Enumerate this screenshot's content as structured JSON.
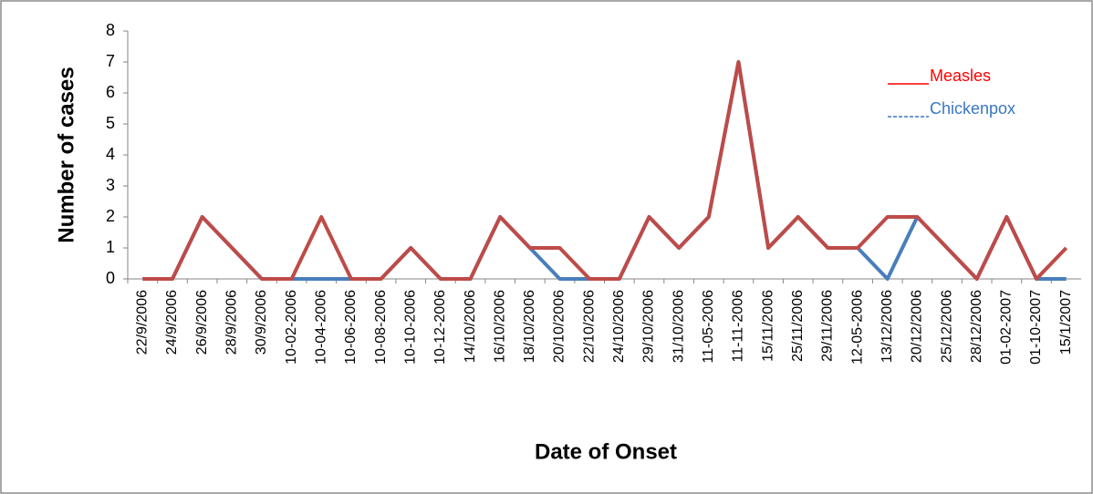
{
  "chart_data": {
    "type": "line",
    "y_label": "Number of cases",
    "x_label": "Date of Onset",
    "categories": [
      "22/9/2006",
      "24/9/2006",
      "26/9/2006",
      "28/9/2006",
      "30/9/2006",
      "10-02-2006",
      "10-04-2006",
      "10-06-2006",
      "10-08-2006",
      "10-10-2006",
      "10-12-2006",
      "14/10/2006",
      "16/10/2006",
      "18/10/2006",
      "20/10/2006",
      "22/10/2006",
      "24/10/2006",
      "29/10/2006",
      "31/10/2006",
      "11-05-2006",
      "11-11-2006",
      "15/11/2006",
      "25/11/2006",
      "29/11/2006",
      "12-05-2006",
      "13/12/2006",
      "20/12/2006",
      "25/12/2006",
      "28/12/2006",
      "01-02-2007",
      "01-10-2007",
      "15/1/2007"
    ],
    "series": [
      {
        "name": "Chickenpox",
        "color": "#4a7ebb",
        "values": [
          0,
          0,
          2,
          1,
          0,
          0,
          0,
          0,
          0,
          1,
          0,
          0,
          2,
          1,
          0,
          0,
          0,
          2,
          1,
          2,
          7,
          1,
          2,
          1,
          1,
          0,
          2,
          1,
          0,
          2,
          0,
          0
        ]
      },
      {
        "name": "Measles",
        "color": "#be4b48",
        "values": [
          0,
          0,
          2,
          1,
          0,
          0,
          2,
          0,
          0,
          1,
          0,
          0,
          2,
          1,
          1,
          0,
          0,
          2,
          1,
          2,
          7,
          1,
          2,
          1,
          1,
          2,
          2,
          1,
          0,
          2,
          0,
          1
        ]
      }
    ],
    "legend_text_colors": [
      "#3a78c3",
      "#ff0000"
    ],
    "ylim": [
      0,
      8
    ],
    "yticks": [
      0,
      1,
      2,
      3,
      4,
      5,
      6,
      7,
      8
    ],
    "grid": false
  }
}
